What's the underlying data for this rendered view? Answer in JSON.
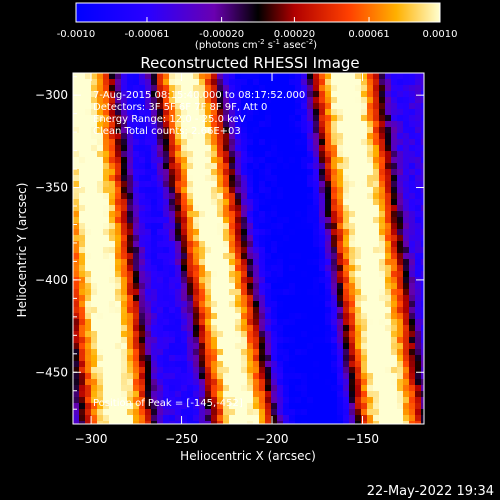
{
  "chart_data": {
    "type": "heatmap",
    "title": "Reconstructed RHESSI Image",
    "xlabel": "Heliocentric X (arcsec)",
    "ylabel": "Heliocentric Y (arcsec)",
    "xlim": [
      -310,
      -116
    ],
    "ylim": [
      -478,
      -288
    ],
    "x_ticks": [
      -300,
      -250,
      -200,
      -150
    ],
    "y_ticks": [
      -300,
      -350,
      -400,
      -450
    ],
    "colorbar": {
      "min": -0.001,
      "max": 0.001,
      "ticks": [
        "-0.0010",
        "-0.00061",
        "-0.00020",
        "0.00020",
        "0.00061",
        "0.0010"
      ],
      "unit_text": "(photons cm",
      "unit_sup1": "-2",
      "unit_mid": " s",
      "unit_sup2": "-1",
      "unit_mid2": " asec",
      "unit_sup3": "-2",
      "unit_end": ")",
      "colormap": "rainbow-blue-purple-red-orange-yellow"
    },
    "info_lines": [
      " 7-Aug-2015 08:15:40.000 to 08:17:52.000",
      "Detectors: 3F 5F 6F 7F 8F 9F, Att 0",
      "Energy Range: 12.0 - 25.0 keV",
      "Clean     Total counts: 2.66E+03"
    ],
    "peak_label": "Position of Peak = [-145,-452]",
    "peak": [
      -145,
      -452
    ],
    "pattern": {
      "description_free": true,
      "stripes_x_at_top": [
        -307,
        -248,
        -160
      ],
      "stripes_x_at_bottom": [
        -285,
        -215,
        -135
      ]
    },
    "grid": false
  },
  "footer": {
    "timestamp": "22-May-2022 19:34"
  }
}
